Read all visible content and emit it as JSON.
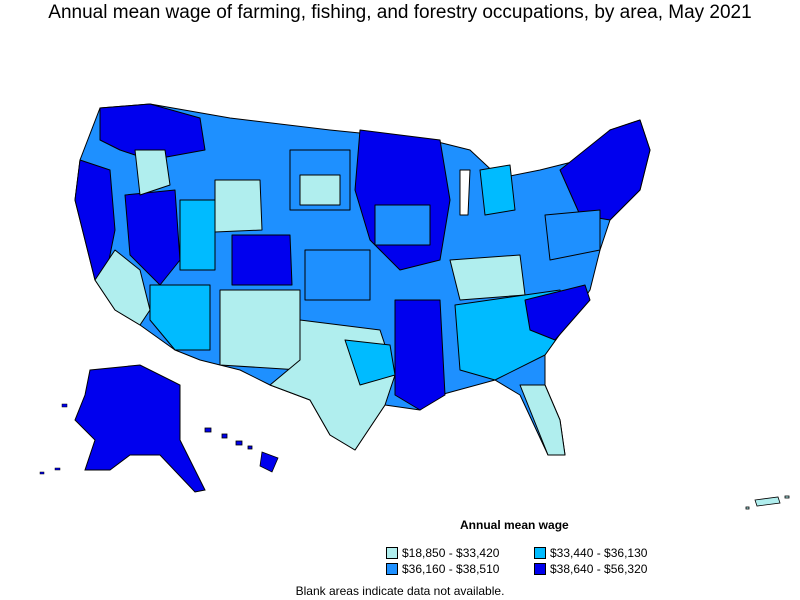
{
  "title": "Annual mean wage of farming, fishing, and forestry occupations, by area, May 2021",
  "legend": {
    "title": "Annual mean wage",
    "items": [
      {
        "label": "$18,850 - $33,420",
        "color": "#b0eeee"
      },
      {
        "label": "$33,440 - $36,130",
        "color": "#00bbff"
      },
      {
        "label": "$36,160 - $38,510",
        "color": "#1e90ff"
      },
      {
        "label": "$38,640 - $56,320",
        "color": "#0000ee"
      }
    ]
  },
  "note": "Blank areas indicate data not available."
}
